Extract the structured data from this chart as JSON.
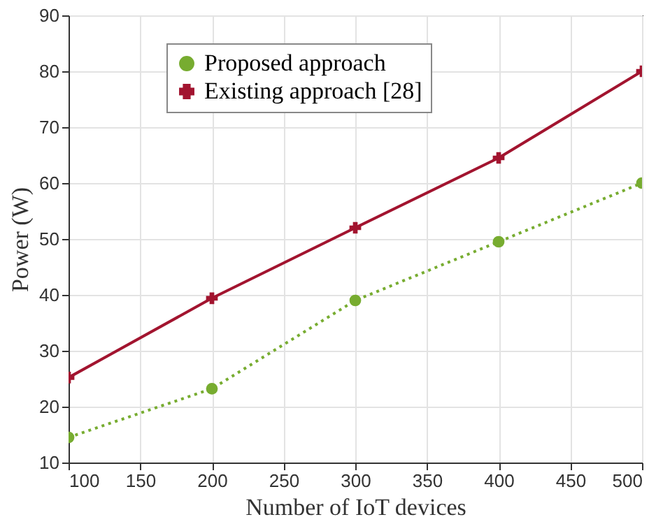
{
  "chart_data": {
    "type": "line",
    "xlabel": "Number of IoT devices",
    "ylabel": "Power (W)",
    "x": [
      100,
      200,
      300,
      400,
      500
    ],
    "series": [
      {
        "name": "Proposed approach",
        "color": "#77ac30",
        "values": [
          14.5,
          23.2,
          39,
          49.5,
          60
        ],
        "marker": "circle",
        "line_style": "dotted"
      },
      {
        "name": "Existing approach [28]",
        "color": "#a2142f",
        "values": [
          25.2,
          39.4,
          52,
          64.5,
          80
        ],
        "marker": "cross",
        "line_style": "solid"
      }
    ],
    "xlim": [
      100,
      500
    ],
    "xticks": [
      100,
      150,
      200,
      250,
      300,
      350,
      400,
      450,
      500
    ],
    "ylim": [
      10,
      90
    ],
    "yticks": [
      10,
      20,
      30,
      40,
      50,
      60,
      70,
      80,
      90
    ],
    "grid": true,
    "legend": "top left"
  }
}
